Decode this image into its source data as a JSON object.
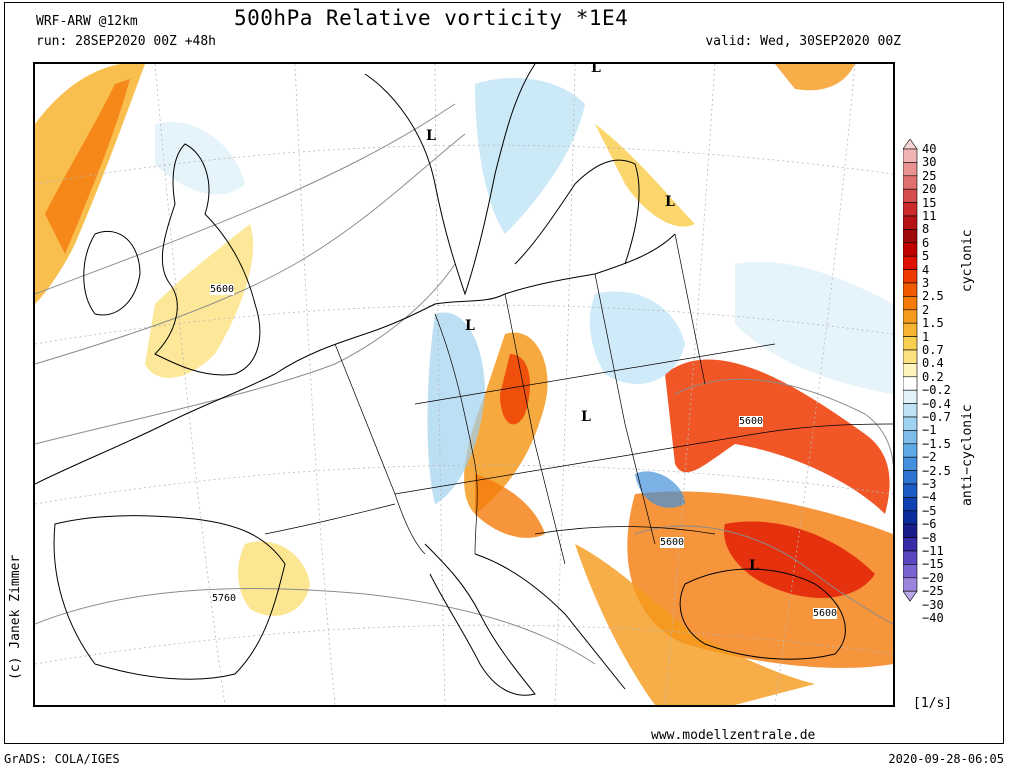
{
  "header": {
    "model": "WRF-ARW @12km",
    "title": "500hPa Relative vorticity *1E4",
    "run": "run: 28SEP2020 00Z +48h",
    "valid": "valid: Wed, 30SEP2020 00Z"
  },
  "map": {
    "pressure_labels": [
      "L",
      "L",
      "L",
      "L",
      "L",
      "L"
    ],
    "height_labels": [
      "5600",
      "5600",
      "5600",
      "5600",
      "5760"
    ]
  },
  "colorbar": {
    "levels": [
      "40",
      "30",
      "25",
      "20",
      "15",
      "11",
      "8",
      "6",
      "5",
      "4",
      "3",
      "2.5",
      "2",
      "1.5",
      "1",
      "0.7",
      "0.4",
      "0.2",
      "−0.2",
      "−0.4",
      "−0.7",
      "−1",
      "−1.5",
      "−2",
      "−2.5",
      "−3",
      "−4",
      "−5",
      "−6",
      "−8",
      "−11",
      "−15",
      "−20",
      "−25",
      "−30",
      "−40"
    ],
    "colors": [
      "#f6d2d2",
      "#f0b4b4",
      "#e89292",
      "#e07070",
      "#d74c4c",
      "#cc2a2a",
      "#b61414",
      "#a00a0a",
      "#c00000",
      "#e01000",
      "#ee3a00",
      "#f25a00",
      "#f47a0a",
      "#f59a1c",
      "#f7b430",
      "#f9cf52",
      "#fbe27e",
      "#fdf3bc",
      "#ffffff",
      "#e2f2fa",
      "#bfe3f5",
      "#9fd1f0",
      "#7ebdea",
      "#5ea8e4",
      "#4490dc",
      "#2e74d2",
      "#1c5ac6",
      "#1040b2",
      "#0a2c9c",
      "#1a1c8c",
      "#3a2ca8",
      "#5a46c0",
      "#7a64d0",
      "#9a84dc",
      "#baa8e8"
    ],
    "cyclonic_label": "cyclonic",
    "anticyclonic_label": "anti−cyclonic",
    "units": "[1/s]"
  },
  "footer": {
    "credit": "(c) Janek Zimmer",
    "url": "www.modellzentrale.de",
    "software": "GrADS: COLA/IGES",
    "timestamp": "2020-09-28-06:05"
  }
}
